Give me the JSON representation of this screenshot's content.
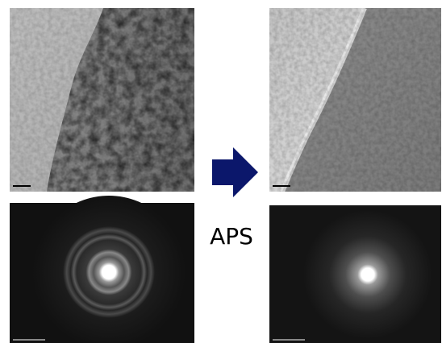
{
  "label": "APS"
}
